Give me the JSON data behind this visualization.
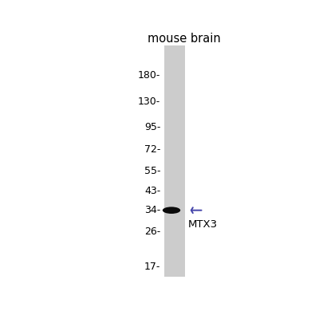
{
  "title": "mouse brain",
  "mw_markers": [
    180,
    130,
    95,
    72,
    55,
    43,
    34,
    26,
    17
  ],
  "band_mw": 34,
  "band_label": "MTX3",
  "arrow_color": "#4444aa",
  "lane_color": "#cccccc",
  "band_color": "#0a0a0a",
  "bg_color": "#ffffff",
  "log_min": 1.176,
  "log_max": 2.362,
  "title_fontsize": 10.5,
  "marker_fontsize": 9,
  "label_fontsize": 9.5
}
